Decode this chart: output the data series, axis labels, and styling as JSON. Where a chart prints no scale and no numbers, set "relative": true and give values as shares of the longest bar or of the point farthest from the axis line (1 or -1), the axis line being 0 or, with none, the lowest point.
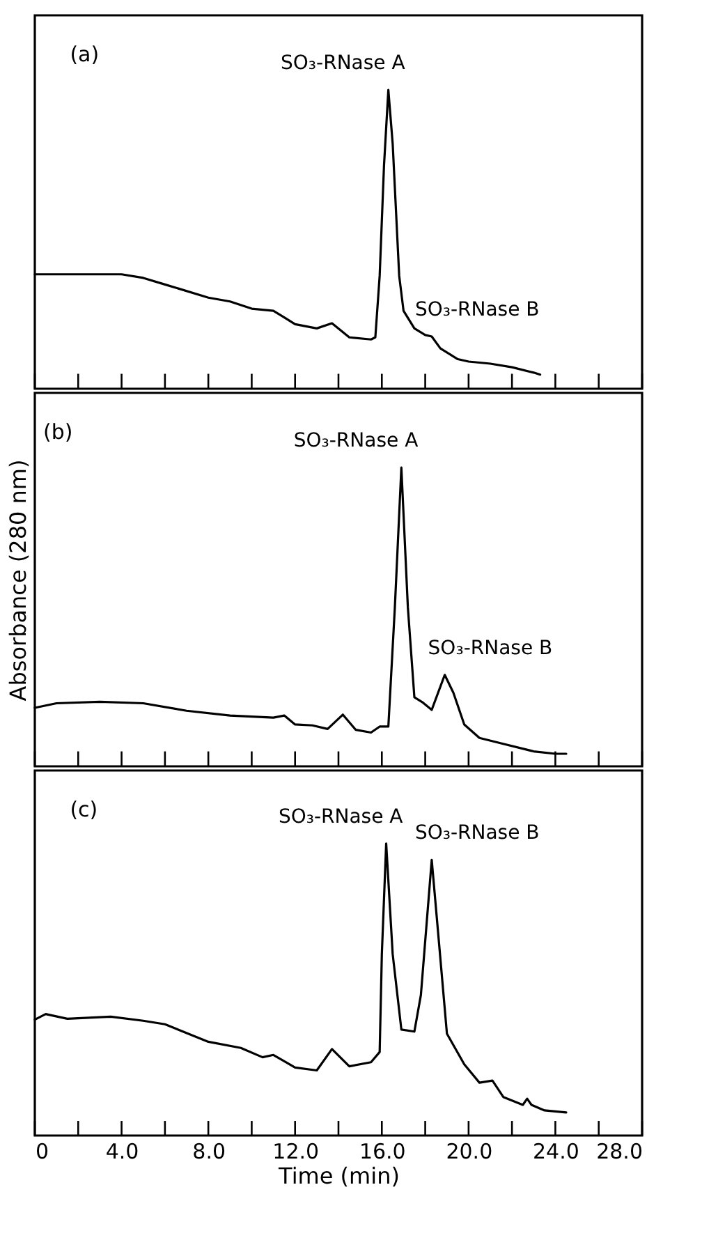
{
  "chart_data": [
    {
      "type": "line",
      "title": "(a)",
      "relative": true,
      "xlim": [
        0,
        28
      ],
      "xticks": [
        {
          "value": 0,
          "label": null
        },
        {
          "value": 2,
          "label": null
        },
        {
          "value": 4,
          "label": null
        },
        {
          "value": 6,
          "label": null
        },
        {
          "value": 8,
          "label": null
        },
        {
          "value": 10,
          "label": null
        },
        {
          "value": 12,
          "label": null
        },
        {
          "value": 14,
          "label": null
        },
        {
          "value": 16,
          "label": null
        },
        {
          "value": 18,
          "label": null
        },
        {
          "value": 20,
          "label": null
        },
        {
          "value": 22,
          "label": null
        },
        {
          "value": 24,
          "label": null
        },
        {
          "value": 26,
          "label": null
        },
        {
          "value": 28,
          "label": null
        }
      ],
      "tick_labels": false,
      "grid": false,
      "annotations": [
        {
          "text": "SO₃-RNase A",
          "x": 16.3,
          "y": 1
        },
        {
          "text": "SO₃-RNase B",
          "x": 18.3,
          "y": 0.175
        }
      ],
      "series": [
        {
          "color": "#000000",
          "x": [
            0,
            2,
            4,
            5,
            6,
            8,
            9,
            10,
            11,
            11.5,
            12,
            13,
            13.7,
            14.5,
            15.5,
            15.7,
            15.9,
            16.1,
            16.3,
            16.5,
            16.8,
            17,
            17.5,
            18,
            18.3,
            18.7,
            19.5,
            20,
            21,
            22,
            23,
            23.3
          ],
          "values": [
            0.383,
            0.383,
            0.383,
            0.371,
            0.349,
            0.305,
            0.292,
            0.268,
            0.261,
            0.239,
            0.216,
            0.202,
            0.219,
            0.172,
            0.165,
            0.172,
            0.378,
            0.747,
            1,
            0.82,
            0.378,
            0.261,
            0.202,
            0.18,
            0.175,
            0.135,
            0.099,
            0.091,
            0.084,
            0.072,
            0.054,
            0.047
          ]
        }
      ]
    },
    {
      "type": "line",
      "title": "(b)",
      "ylabel": "Absorbance  (280 nm)",
      "relative": true,
      "xlim": [
        0,
        28
      ],
      "xticks": [
        {
          "value": 0,
          "label": null
        },
        {
          "value": 2,
          "label": null
        },
        {
          "value": 4,
          "label": null
        },
        {
          "value": 6,
          "label": null
        },
        {
          "value": 8,
          "label": null
        },
        {
          "value": 10,
          "label": null
        },
        {
          "value": 12,
          "label": null
        },
        {
          "value": 14,
          "label": null
        },
        {
          "value": 16,
          "label": null
        },
        {
          "value": 18,
          "label": null
        },
        {
          "value": 20,
          "label": null
        },
        {
          "value": 22,
          "label": null
        },
        {
          "value": 24,
          "label": null
        },
        {
          "value": 26,
          "label": null
        },
        {
          "value": 28,
          "label": null
        }
      ],
      "tick_labels": "y",
      "grid": false,
      "annotations": [
        {
          "text": "SO₃-RNase A",
          "x": 16.9,
          "y": 1
        },
        {
          "text": "SO₃-RNase B",
          "x": 18.9,
          "y": 0.306
        }
      ],
      "series": [
        {
          "color": "#000000",
          "x": [
            0,
            1,
            3,
            5,
            7,
            9,
            11,
            11.5,
            12,
            12.8,
            13.5,
            14.2,
            14.8,
            15.5,
            15.9,
            16.3,
            16.6,
            16.9,
            17.2,
            17.5,
            17.9,
            18.3,
            18.9,
            19.3,
            19.8,
            20.5,
            21.5,
            23,
            24,
            24.5
          ],
          "values": [
            0.196,
            0.211,
            0.216,
            0.211,
            0.186,
            0.17,
            0.163,
            0.17,
            0.14,
            0.137,
            0.125,
            0.173,
            0.122,
            0.113,
            0.133,
            0.133,
            0.532,
            1,
            0.532,
            0.231,
            0.213,
            0.189,
            0.306,
            0.246,
            0.14,
            0.095,
            0.077,
            0.05,
            0.042,
            0.042
          ]
        }
      ]
    },
    {
      "type": "line",
      "title": "(c)",
      "xlabel": "Time (min)",
      "relative": true,
      "xlim": [
        0,
        28
      ],
      "xticks": [
        0,
        {
          "value": 2,
          "label": null
        },
        {
          "value": 4,
          "label": "4.0"
        },
        {
          "value": 6,
          "label": null
        },
        {
          "value": 8,
          "label": "8.0"
        },
        {
          "value": 10,
          "label": null
        },
        {
          "value": 12,
          "label": "12.0"
        },
        {
          "value": 14,
          "label": null
        },
        {
          "value": 16,
          "label": "16.0"
        },
        {
          "value": 18,
          "label": null
        },
        {
          "value": 20,
          "label": "20.0"
        },
        {
          "value": 22,
          "label": null
        },
        {
          "value": 24,
          "label": "24.0"
        },
        {
          "value": 26,
          "label": null
        },
        {
          "value": 28,
          "label": "28.0"
        }
      ],
      "grid": false,
      "annotations": [
        {
          "text": "SO₃-RNase A",
          "x": 16.2,
          "y": 1
        },
        {
          "text": "SO₃-RNase B",
          "x": 18.3,
          "y": 0.944
        }
      ],
      "series": [
        {
          "color": "#000000",
          "x": [
            0,
            0.5,
            1.5,
            3.5,
            5,
            6,
            8,
            9.5,
            10.5,
            11,
            12,
            13,
            13.7,
            14.5,
            15.5,
            15.9,
            16,
            16.2,
            16.5,
            16.9,
            17.5,
            17.8,
            18.3,
            18.6,
            19,
            19.8,
            20.5,
            21.1,
            21.6,
            22.5,
            22.7,
            22.9,
            23.5,
            24.5
          ],
          "values": [
            0.397,
            0.416,
            0.4,
            0.407,
            0.393,
            0.381,
            0.321,
            0.3,
            0.268,
            0.276,
            0.233,
            0.223,
            0.296,
            0.237,
            0.251,
            0.286,
            0.621,
            1,
            0.621,
            0.363,
            0.356,
            0.481,
            0.944,
            0.69,
            0.349,
            0.244,
            0.181,
            0.188,
            0.132,
            0.105,
            0.126,
            0.105,
            0.086,
            0.079
          ]
        }
      ]
    }
  ]
}
